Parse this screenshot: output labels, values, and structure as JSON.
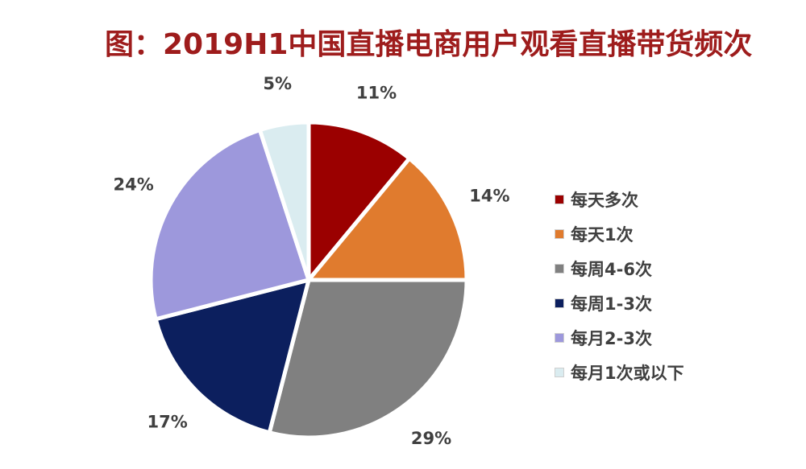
{
  "chart_data": {
    "type": "pie",
    "title": "图：2019H1中国直播电商用户观看直播带货频次",
    "legend_position": "right",
    "categories": [
      "每天多次",
      "每天1次",
      "每周4-6次",
      "每周1-3次",
      "每月2-3次",
      "每月1次或以下"
    ],
    "values": [
      11,
      14,
      29,
      17,
      24,
      5
    ],
    "data_labels": [
      "11%",
      "14%",
      "29%",
      "17%",
      "24%",
      "5%"
    ],
    "colors": [
      "#9b0000",
      "#e07b2e",
      "#808080",
      "#0c1f5e",
      "#9d98dc",
      "#daecf0"
    ]
  }
}
